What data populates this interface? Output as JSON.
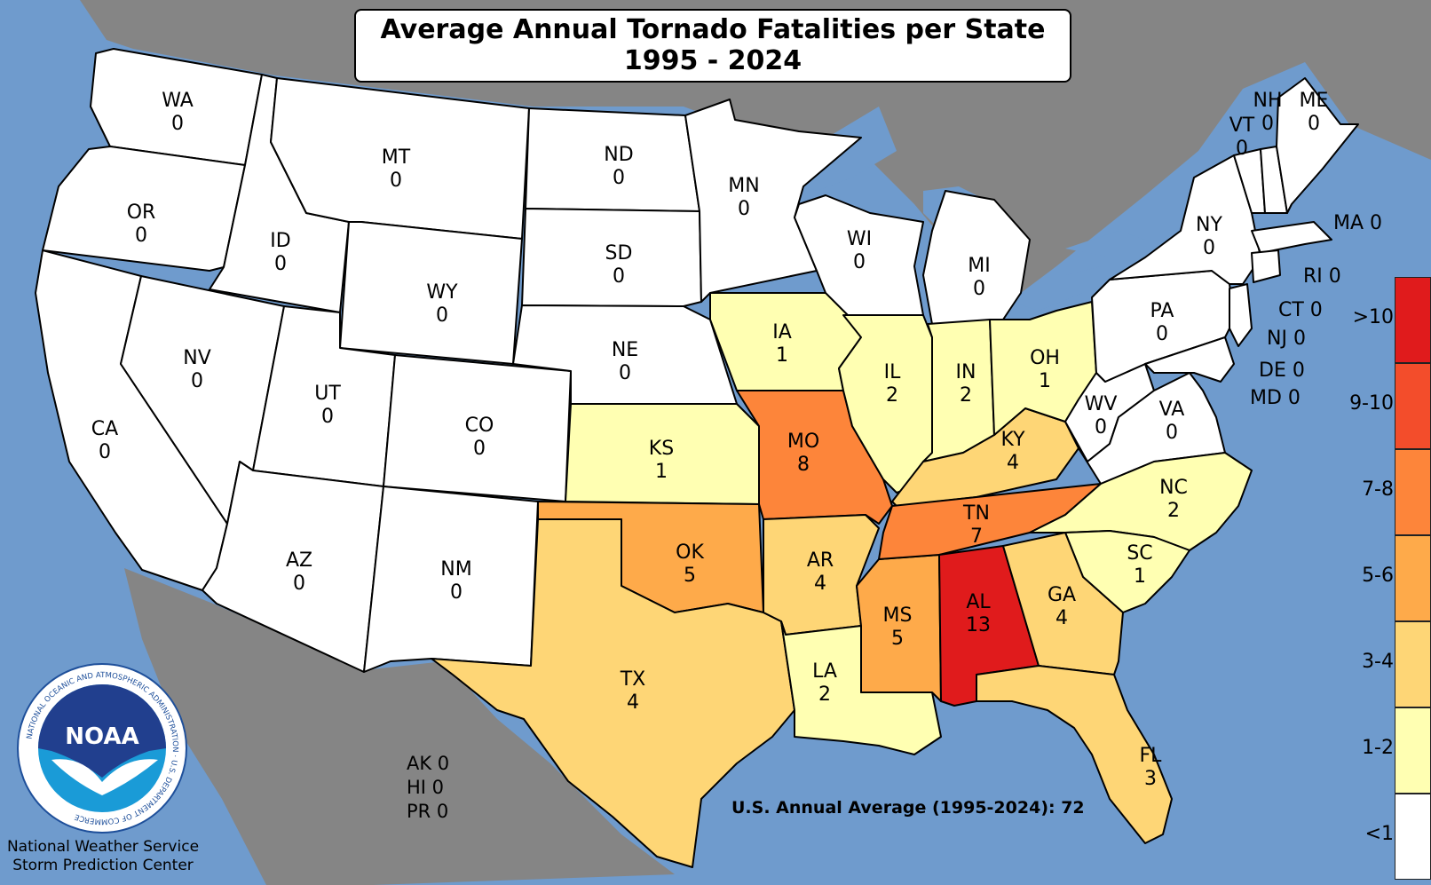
{
  "title": {
    "line1": "Average Annual Tornado Fatalities per State",
    "line2": "1995 - 2024"
  },
  "colors": {
    "water": "#6f9bcd",
    "land_other": "#858585",
    "lt1": "#ffffff",
    "c1_2": "#ffffb2",
    "c3_4": "#fed676",
    "c5_6": "#feaa4a",
    "c7_8": "#fd853a",
    "c9_10": "#f34d2b",
    "gt10": "#e01b1c"
  },
  "legend": [
    {
      "label": ">10",
      "color": "#e01b1c"
    },
    {
      "label": "9-10",
      "color": "#f34d2b"
    },
    {
      "label": "7-8",
      "color": "#fd853a"
    },
    {
      "label": "5-6",
      "color": "#feaa4a"
    },
    {
      "label": "3-4",
      "color": "#fed676"
    },
    {
      "label": "1-2",
      "color": "#ffffb2"
    },
    {
      "label": "<1",
      "color": "#ffffff"
    }
  ],
  "states": {
    "WA": {
      "abbr": "WA",
      "value": "0"
    },
    "OR": {
      "abbr": "OR",
      "value": "0"
    },
    "CA": {
      "abbr": "CA",
      "value": "0"
    },
    "NV": {
      "abbr": "NV",
      "value": "0"
    },
    "ID": {
      "abbr": "ID",
      "value": "0"
    },
    "MT": {
      "abbr": "MT",
      "value": "0"
    },
    "WY": {
      "abbr": "WY",
      "value": "0"
    },
    "UT": {
      "abbr": "UT",
      "value": "0"
    },
    "AZ": {
      "abbr": "AZ",
      "value": "0"
    },
    "CO": {
      "abbr": "CO",
      "value": "0"
    },
    "NM": {
      "abbr": "NM",
      "value": "0"
    },
    "ND": {
      "abbr": "ND",
      "value": "0"
    },
    "SD": {
      "abbr": "SD",
      "value": "0"
    },
    "NE": {
      "abbr": "NE",
      "value": "0"
    },
    "KS": {
      "abbr": "KS",
      "value": "1"
    },
    "OK": {
      "abbr": "OK",
      "value": "5"
    },
    "TX": {
      "abbr": "TX",
      "value": "4"
    },
    "MN": {
      "abbr": "MN",
      "value": "0"
    },
    "IA": {
      "abbr": "IA",
      "value": "1"
    },
    "MO": {
      "abbr": "MO",
      "value": "8"
    },
    "AR": {
      "abbr": "AR",
      "value": "4"
    },
    "LA": {
      "abbr": "LA",
      "value": "2"
    },
    "WI": {
      "abbr": "WI",
      "value": "0"
    },
    "IL": {
      "abbr": "IL",
      "value": "2"
    },
    "MS": {
      "abbr": "MS",
      "value": "5"
    },
    "MI": {
      "abbr": "MI",
      "value": "0"
    },
    "IN": {
      "abbr": "IN",
      "value": "2"
    },
    "KY": {
      "abbr": "KY",
      "value": "4"
    },
    "TN": {
      "abbr": "TN",
      "value": "7"
    },
    "AL": {
      "abbr": "AL",
      "value": "13"
    },
    "OH": {
      "abbr": "OH",
      "value": "1"
    },
    "WV": {
      "abbr": "WV",
      "value": "0"
    },
    "VA": {
      "abbr": "VA",
      "value": "0"
    },
    "NC": {
      "abbr": "NC",
      "value": "2"
    },
    "SC": {
      "abbr": "SC",
      "value": "1"
    },
    "GA": {
      "abbr": "GA",
      "value": "4"
    },
    "FL": {
      "abbr": "FL",
      "value": "3"
    },
    "PA": {
      "abbr": "PA",
      "value": "0"
    },
    "NY": {
      "abbr": "NY",
      "value": "0"
    },
    "VT": {
      "abbr": "VT",
      "value": "0"
    },
    "NH": {
      "abbr": "NH",
      "value": "0"
    },
    "ME": {
      "abbr": "ME",
      "value": "0"
    }
  },
  "small_states": {
    "MA": "MA 0",
    "RI": "RI 0",
    "CT": "CT 0",
    "NJ": "NJ 0",
    "DE": "DE 0",
    "MD": "MD 0"
  },
  "territories": {
    "AK": "AK 0",
    "HI": "HI 0",
    "PR": "PR 0"
  },
  "us_average": "U.S. Annual Average (1995-2024): 72",
  "agency": {
    "line1": "National Weather Service",
    "line2": "Storm Prediction Center"
  },
  "logo": {
    "text": "NOAA",
    "ring_text": "NATIONAL OCEANIC AND ATMOSPHERIC ADMINISTRATION · U.S. DEPARTMENT OF COMMERCE"
  }
}
